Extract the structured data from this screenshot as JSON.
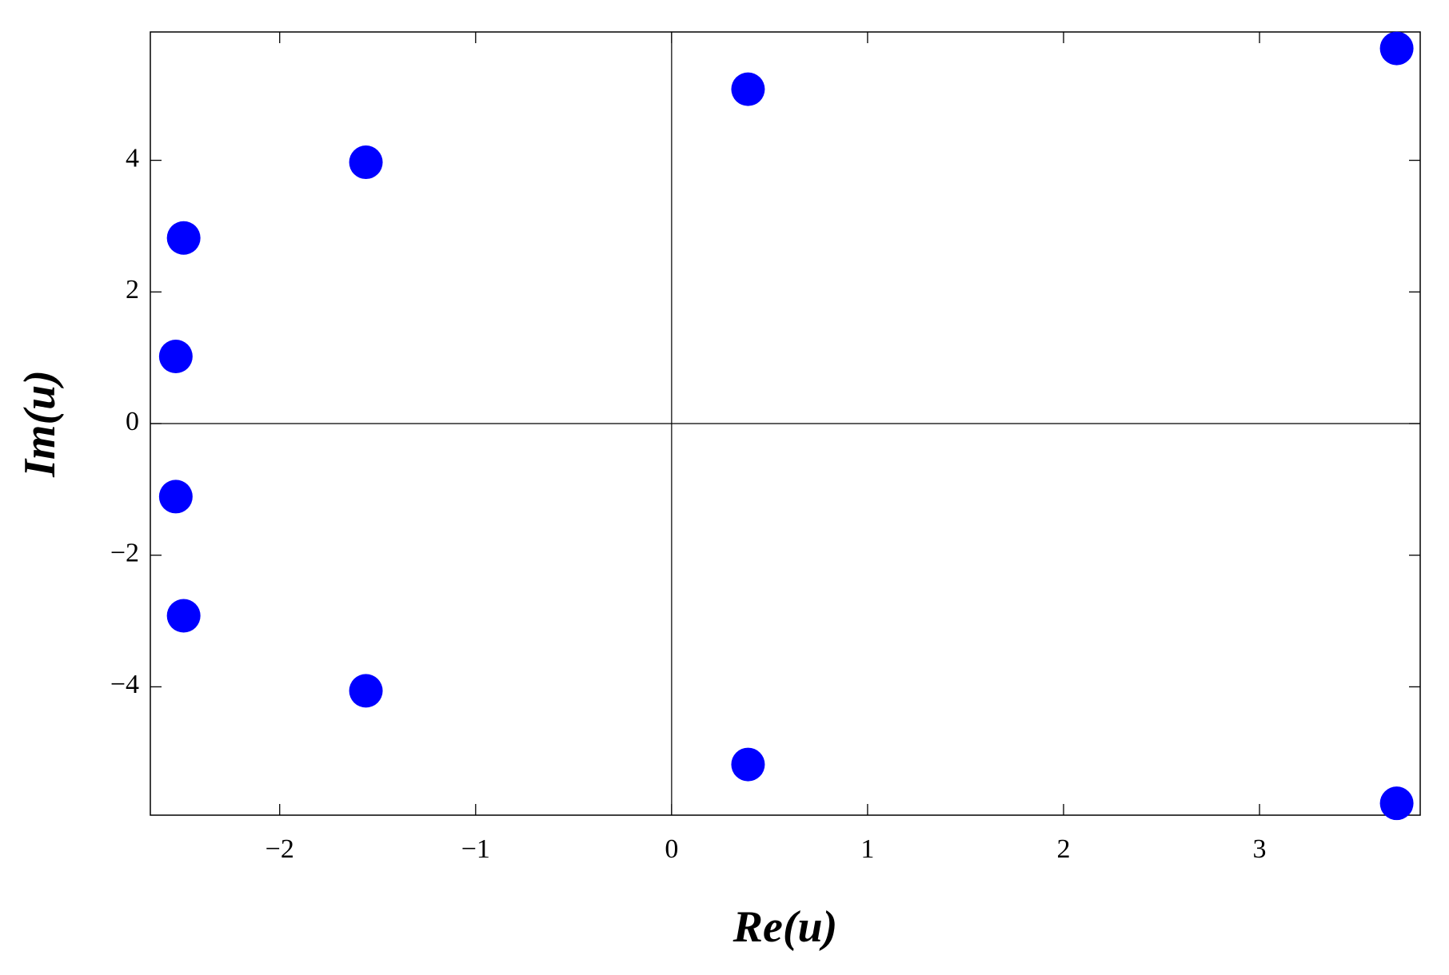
{
  "chart_data": {
    "type": "scatter",
    "x_label": "Re(u)",
    "y_label": "Im(u)",
    "series": [
      {
        "color": "#0000ff",
        "x": [
          -2.49,
          -2.53,
          -2.53,
          -2.49,
          -1.56,
          -1.56,
          0.39,
          0.39,
          3.7,
          3.7
        ],
        "values": [
          2.82,
          1.02,
          -1.11,
          -2.92,
          3.97,
          -4.06,
          5.08,
          -5.18,
          5.7,
          -5.77
        ]
      }
    ],
    "xlim": [
      -2.66,
      3.82
    ],
    "ylim": [
      -5.95,
      5.95
    ],
    "xticks": [
      {
        "value": -2,
        "label": "−2"
      },
      {
        "value": -1,
        "label": "−1"
      },
      0,
      1,
      2,
      3
    ],
    "yticks": [
      {
        "value": -4,
        "label": "−4"
      },
      {
        "value": -2,
        "label": "−2"
      },
      0,
      2,
      4
    ]
  }
}
